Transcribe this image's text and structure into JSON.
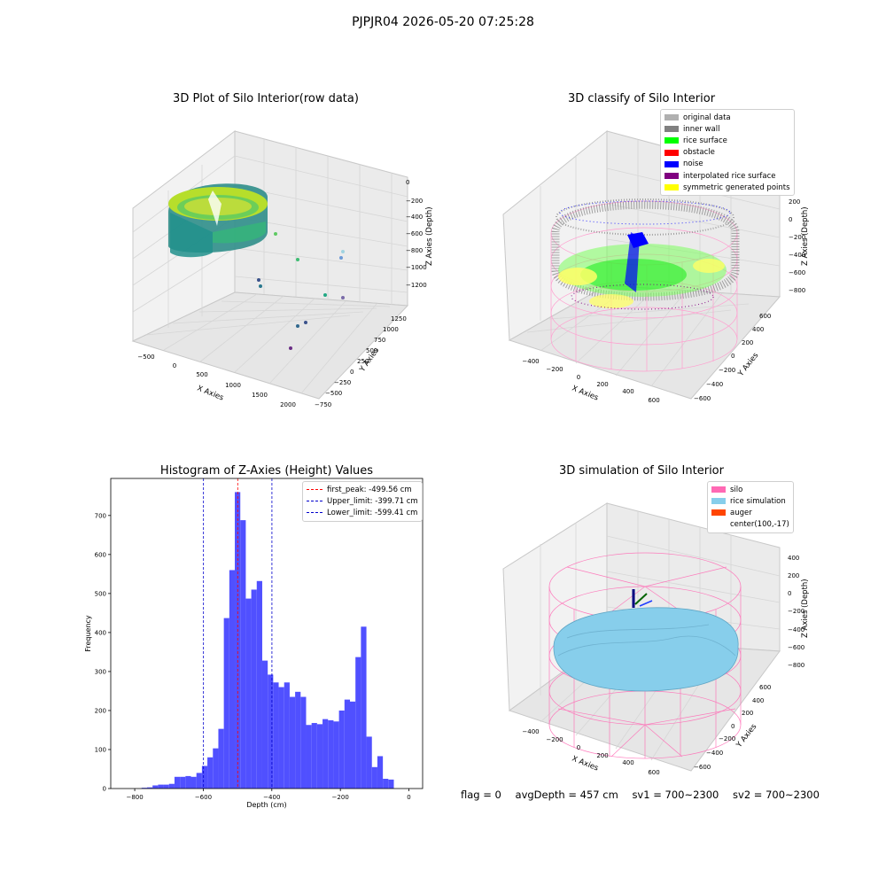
{
  "suptitle": "PJPJR04 2026-05-20 07:25:28",
  "colors": {
    "histogram_bar": "#5050ff",
    "peak_line": "#ff0000",
    "limit_line": "#0000cc",
    "pane": "#f2f2f2",
    "grid": "#d6d6d6"
  },
  "chart_data": [
    {
      "type": "scatter",
      "title": "3D Plot of Silo Interior(row data)",
      "xlabel": "X Axies",
      "ylabel": "Y Axies",
      "zlabel": "Z Axies (Depth)",
      "xticks": [
        "−500",
        "0",
        "500",
        "1000",
        "1500",
        "2000"
      ],
      "yticks": [
        "−750",
        "−500",
        "−250",
        "0",
        "250",
        "500",
        "750",
        "1000",
        "1250"
      ],
      "zticks": [
        "0",
        "−200",
        "−400",
        "−600",
        "−800",
        "−1000",
        "−1200"
      ],
      "colormap": "viridis"
    },
    {
      "type": "scatter",
      "title": "3D classify of Silo Interior",
      "xlabel": "X Axies",
      "ylabel": "Y Axies",
      "zlabel": "Z Axies (Depth)",
      "xticks": [
        "−400",
        "−200",
        "0",
        "200",
        "400",
        "600"
      ],
      "yticks": [
        "−600",
        "−400",
        "−200",
        "0",
        "200",
        "400",
        "600"
      ],
      "zticks": [
        "200",
        "0",
        "−200",
        "−400",
        "−600",
        "−800"
      ],
      "legend_position": "top-right",
      "legend": [
        {
          "label": "original data",
          "color": "#b0b0b0"
        },
        {
          "label": "inner wall",
          "color": "#808080"
        },
        {
          "label": "rice surface",
          "color": "#00ff00"
        },
        {
          "label": "obstacle",
          "color": "#ff0000"
        },
        {
          "label": "noise",
          "color": "#0000ff"
        },
        {
          "label": "interpolated rice surface",
          "color": "#800080"
        },
        {
          "label": "symmetric generated points",
          "color": "#ffff00"
        }
      ]
    },
    {
      "type": "bar",
      "title": "Histogram of Z-Axies (Height) Values",
      "xlabel": "Depth (cm)",
      "ylabel": "Frequency",
      "xlim": [
        -870,
        40
      ],
      "ylim": [
        0,
        795
      ],
      "xticks": [
        {
          "value": -800,
          "label": "−800"
        },
        {
          "value": -600,
          "label": "−600"
        },
        {
          "value": -400,
          "label": "−400"
        },
        {
          "value": -200,
          "label": "−200"
        },
        {
          "value": 0,
          "label": "0"
        }
      ],
      "yticks": [
        {
          "value": 0,
          "label": "0"
        },
        {
          "value": 100,
          "label": "100"
        },
        {
          "value": 200,
          "label": "200"
        },
        {
          "value": 300,
          "label": "300"
        },
        {
          "value": 400,
          "label": "400"
        },
        {
          "value": 500,
          "label": "500"
        },
        {
          "value": 600,
          "label": "600"
        },
        {
          "value": 700,
          "label": "700"
        }
      ],
      "bin_start": -780,
      "bin_width": 16,
      "values": [
        2,
        3,
        8,
        10,
        10,
        12,
        30,
        30,
        32,
        30,
        40,
        58,
        80,
        103,
        153,
        437,
        560,
        760,
        688,
        487,
        510,
        532,
        328,
        292,
        272,
        260,
        272,
        235,
        248,
        235,
        163,
        168,
        165,
        178,
        175,
        172,
        200,
        228,
        223,
        337,
        415,
        133,
        55,
        83,
        25,
        23
      ],
      "vlines": [
        {
          "value": -499.56,
          "label": "first_peak: -499.56 cm",
          "color": "#ff0000"
        },
        {
          "value": -399.71,
          "label": "Upper_limit: -399.71 cm",
          "color": "#0000cc"
        },
        {
          "value": -599.41,
          "label": "Lower_limit: -599.41 cm",
          "color": "#0000cc"
        }
      ],
      "legend_position": "top-right"
    },
    {
      "type": "scatter",
      "title": "3D simulation of Silo Interior",
      "xlabel": "X Axies",
      "ylabel": "Y Axies",
      "zlabel": "Z Axies (Depth)",
      "xticks": [
        "−400",
        "−200",
        "0",
        "200",
        "400",
        "600"
      ],
      "yticks": [
        "−600",
        "−400",
        "−200",
        "0",
        "200",
        "400",
        "600"
      ],
      "zticks": [
        "400",
        "200",
        "0",
        "−200",
        "−400",
        "−600",
        "−800"
      ],
      "legend_position": "top-right",
      "legend": [
        {
          "label": "silo",
          "color": "#ff69b4"
        },
        {
          "label": "rice simulation",
          "color": "#87ceeb"
        },
        {
          "label": "auger",
          "color": "#ff4500"
        },
        {
          "label": "center(100,-17)",
          "color": ""
        }
      ]
    }
  ],
  "footer": {
    "flag": "flag = 0",
    "avg_depth": "avgDepth = 457 cm",
    "sv1": "sv1 = 700~2300",
    "sv2": "sv2 = 700~2300"
  }
}
